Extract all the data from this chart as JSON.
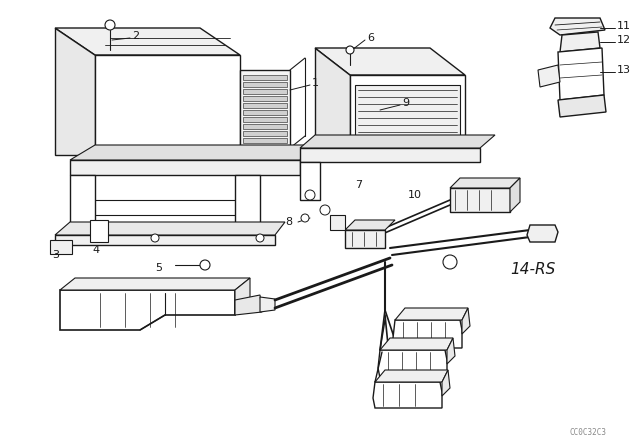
{
  "bg_color": "#ffffff",
  "line_color": "#1a1a1a",
  "fig_width": 6.4,
  "fig_height": 4.48,
  "dpi": 100,
  "watermark": "CC0C32C3",
  "ref_code": "14-RS"
}
